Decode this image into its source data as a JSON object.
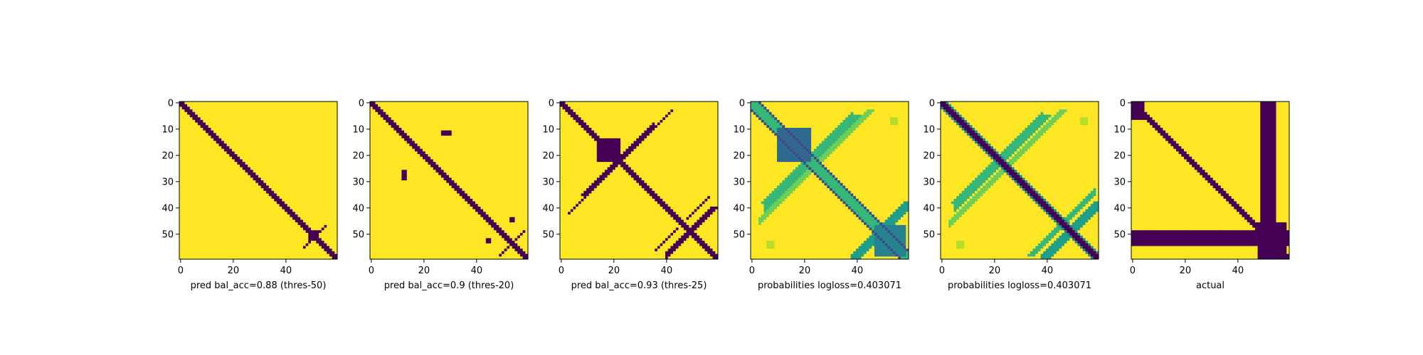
{
  "colors": {
    "low": "#440154",
    "high": "#fde725",
    "colormap": [
      "#440154",
      "#482878",
      "#3e4989",
      "#31688e",
      "#26828e",
      "#1f9e89",
      "#35b779",
      "#6ece58",
      "#b5de2b",
      "#fde725"
    ]
  },
  "chart_data": [
    {
      "type": "heatmap",
      "xlabel": "pred bal_acc=0.88 (thres-50)",
      "matrix_size": 60,
      "xlim": [
        0,
        59
      ],
      "ylim": [
        59,
        0
      ],
      "x_ticks": [
        0,
        20,
        40
      ],
      "y_ticks": [
        0,
        10,
        20,
        30,
        40,
        50
      ],
      "values_range": [
        0,
        1
      ],
      "features": [
        {
          "kind": "diagonal",
          "from": 0,
          "to": 59,
          "halfwidth": 1.2,
          "value": 0
        },
        {
          "kind": "block",
          "i": [
            49,
            52
          ],
          "j": [
            49,
            52
          ],
          "value": 0
        },
        {
          "kind": "antidiagonal",
          "sum": 102,
          "i": [
            47,
            55
          ],
          "halfwidth": 0.6,
          "value": 0
        }
      ],
      "background": 1
    },
    {
      "type": "heatmap",
      "xlabel": "pred bal_acc=0.9 (thres-20)",
      "matrix_size": 60,
      "xlim": [
        0,
        59
      ],
      "ylim": [
        59,
        0
      ],
      "x_ticks": [
        0,
        20,
        40
      ],
      "y_ticks": [
        0,
        10,
        20,
        30,
        40,
        50
      ],
      "values_range": [
        0,
        1
      ],
      "features": [
        {
          "kind": "diagonal",
          "from": 0,
          "to": 59,
          "halfwidth": 1.5,
          "value": 0
        },
        {
          "kind": "block",
          "i": [
            11,
            12
          ],
          "j": [
            27,
            30
          ],
          "value": 0
        },
        {
          "kind": "block",
          "i": [
            26,
            29
          ],
          "j": [
            12,
            13
          ],
          "value": 0
        },
        {
          "kind": "block",
          "i": [
            44,
            45
          ],
          "j": [
            53,
            54
          ],
          "value": 0
        },
        {
          "kind": "block",
          "i": [
            52,
            53
          ],
          "j": [
            44,
            45
          ],
          "value": 0
        },
        {
          "kind": "antidiagonal",
          "sum": 107,
          "i": [
            49,
            57
          ],
          "halfwidth": 0.6,
          "value": 0
        }
      ],
      "background": 1
    },
    {
      "type": "heatmap",
      "xlabel": "pred bal_acc=0.93 (thres-25)",
      "matrix_size": 60,
      "xlim": [
        0,
        59
      ],
      "ylim": [
        59,
        0
      ],
      "x_ticks": [
        0,
        20,
        40
      ],
      "y_ticks": [
        0,
        10,
        20,
        30,
        40,
        50
      ],
      "values_range": [
        0,
        1
      ],
      "features": [
        {
          "kind": "diagonal",
          "from": 0,
          "to": 59,
          "halfwidth": 1.8,
          "value": 0
        },
        {
          "kind": "block",
          "i": [
            14,
            22
          ],
          "j": [
            14,
            22
          ],
          "value": 0
        },
        {
          "kind": "antidiagonal",
          "sum": 45,
          "i": [
            3,
            15
          ],
          "j_offset": 0,
          "halfwidth": 0.8,
          "value": 0
        },
        {
          "kind": "antidiagonal",
          "sum": 44,
          "i": [
            15,
            35
          ],
          "halfwidth": 1.0,
          "value": 0
        },
        {
          "kind": "antidiagonal",
          "sum": 98,
          "i": [
            40,
            57
          ],
          "halfwidth": 1.0,
          "value": 0
        },
        {
          "kind": "antidiagonal",
          "sum": 92,
          "i": [
            48,
            56
          ],
          "halfwidth": 0.8,
          "value": 0
        }
      ],
      "background": 1
    },
    {
      "type": "heatmap",
      "xlabel": "probabilities logloss=0.403071",
      "matrix_size": 60,
      "xlim": [
        0,
        59
      ],
      "ylim": [
        59,
        0
      ],
      "x_ticks": [
        0,
        20,
        40
      ],
      "y_ticks": [
        0,
        10,
        20,
        30,
        40,
        50
      ],
      "values_range": [
        0,
        1
      ],
      "features": [
        {
          "kind": "diagonal_line",
          "offset": 3,
          "halfwidth": 0.5,
          "value": 0.25
        },
        {
          "kind": "diagonal_line",
          "offset": -3,
          "halfwidth": 0.5,
          "value": 0.25
        },
        {
          "kind": "diagonal_band",
          "offset": 0,
          "halfwidth": 2.5,
          "value": 0.65
        },
        {
          "kind": "block",
          "i": [
            10,
            22
          ],
          "j": [
            10,
            22
          ],
          "value": 0.3
        },
        {
          "kind": "antidiagonal",
          "sum": 44,
          "i": [
            5,
            38
          ],
          "halfwidth": 2.5,
          "value": 0.7
        },
        {
          "kind": "antidiagonal",
          "sum": 48,
          "i": [
            3,
            30
          ],
          "halfwidth": 1.5,
          "value": 0.75
        },
        {
          "kind": "antidiagonal",
          "sum": 98,
          "i": [
            38,
            58
          ],
          "halfwidth": 2.0,
          "value": 0.55
        },
        {
          "kind": "block",
          "i": [
            47,
            58
          ],
          "j": [
            47,
            58
          ],
          "value": 0.45
        },
        {
          "kind": "block",
          "i": [
            53,
            55
          ],
          "j": [
            6,
            8
          ],
          "value": 0.85
        },
        {
          "kind": "block",
          "i": [
            6,
            8
          ],
          "j": [
            53,
            55
          ],
          "value": 0.85
        }
      ],
      "background": 1
    },
    {
      "type": "heatmap",
      "xlabel": "probabilities logloss=0.403071",
      "matrix_size": 60,
      "xlim": [
        0,
        59
      ],
      "ylim": [
        59,
        0
      ],
      "x_ticks": [
        0,
        20,
        40
      ],
      "y_ticks": [
        0,
        10,
        20,
        30,
        40,
        50
      ],
      "values_range": [
        0,
        1
      ],
      "features": [
        {
          "kind": "diagonal_band",
          "offset": 0,
          "halfwidth": 2.5,
          "value": 0.45
        },
        {
          "kind": "diagonal",
          "from": 0,
          "to": 59,
          "halfwidth": 1.5,
          "value": 0
        },
        {
          "kind": "antidiagonal",
          "sum": 44,
          "i": [
            5,
            38
          ],
          "halfwidth": 2.5,
          "value": 0.65
        },
        {
          "kind": "antidiagonal",
          "sum": 49,
          "i": [
            3,
            30
          ],
          "halfwidth": 1.5,
          "value": 0.75
        },
        {
          "kind": "antidiagonal",
          "sum": 98,
          "i": [
            38,
            58
          ],
          "halfwidth": 2.0,
          "value": 0.55
        },
        {
          "kind": "antidiagonal",
          "sum": 92,
          "i": [
            46,
            58
          ],
          "halfwidth": 1.5,
          "value": 0.65
        },
        {
          "kind": "block",
          "i": [
            53,
            55
          ],
          "j": [
            6,
            8
          ],
          "value": 0.85
        },
        {
          "kind": "block",
          "i": [
            6,
            8
          ],
          "j": [
            53,
            55
          ],
          "value": 0.85
        }
      ],
      "background": 1
    },
    {
      "type": "heatmap",
      "xlabel": "actual",
      "matrix_size": 60,
      "xlim": [
        0,
        59
      ],
      "ylim": [
        59,
        0
      ],
      "x_ticks": [
        0,
        20,
        40
      ],
      "y_ticks": [
        0,
        10,
        20,
        30,
        40,
        50
      ],
      "values_range": [
        0,
        1
      ],
      "features": [
        {
          "kind": "diagonal",
          "from": 0,
          "to": 59,
          "halfwidth": 1.5,
          "value": 0
        },
        {
          "kind": "block",
          "i": [
            0,
            6
          ],
          "j": [
            0,
            4
          ],
          "value": 0
        },
        {
          "kind": "block",
          "i": [
            0,
            59
          ],
          "j": [
            49,
            54
          ],
          "value": 0
        },
        {
          "kind": "block",
          "i": [
            49,
            54
          ],
          "j": [
            0,
            59
          ],
          "value": 0
        },
        {
          "kind": "block",
          "i": [
            46,
            59
          ],
          "j": [
            48,
            58
          ],
          "value": 0
        }
      ],
      "background": 1
    }
  ]
}
